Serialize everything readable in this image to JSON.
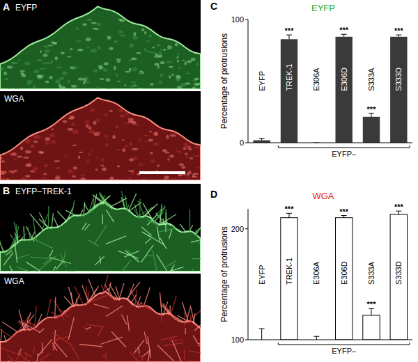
{
  "panels": [
    {
      "label": "A",
      "images": [
        "EYFP",
        "WGA"
      ]
    },
    {
      "label": "B",
      "images": [
        "EYFP–TREK-1",
        "WGA"
      ]
    }
  ],
  "chart_data": [
    {
      "panel": "C",
      "type": "bar",
      "title": "EYFP",
      "y_label": "Percentage of protrusions",
      "categories": [
        "EYFP",
        "TREK-1",
        "E306A",
        "E306D",
        "S333A",
        "S333D"
      ],
      "values": [
        2,
        84,
        0,
        86,
        21,
        86
      ],
      "errors": [
        1.5,
        3.5,
        0,
        2,
        3,
        1.5
      ],
      "significance": [
        null,
        "***",
        null,
        "***",
        "***",
        "***"
      ],
      "group_label": "EYFP–",
      "color": "#3a3a3a",
      "ylim": [
        0,
        100
      ],
      "yticks": [
        0,
        100
      ]
    },
    {
      "panel": "D",
      "type": "bar",
      "title": "WGA",
      "y_label": "Percentage of protrusions",
      "categories": [
        "EYFP",
        "TREK-1",
        "E306A",
        "E306D",
        "S333A",
        "S333D"
      ],
      "values": [
        100,
        210,
        100,
        210,
        122,
        213
      ],
      "errors": [
        10,
        4,
        3,
        2,
        6,
        3
      ],
      "significance": [
        null,
        "***",
        null,
        "***",
        "***",
        "***"
      ],
      "group_label": "EYFP–",
      "color": "#ffffff",
      "ylim": [
        100,
        218
      ],
      "yticks": [
        100,
        200
      ]
    }
  ]
}
